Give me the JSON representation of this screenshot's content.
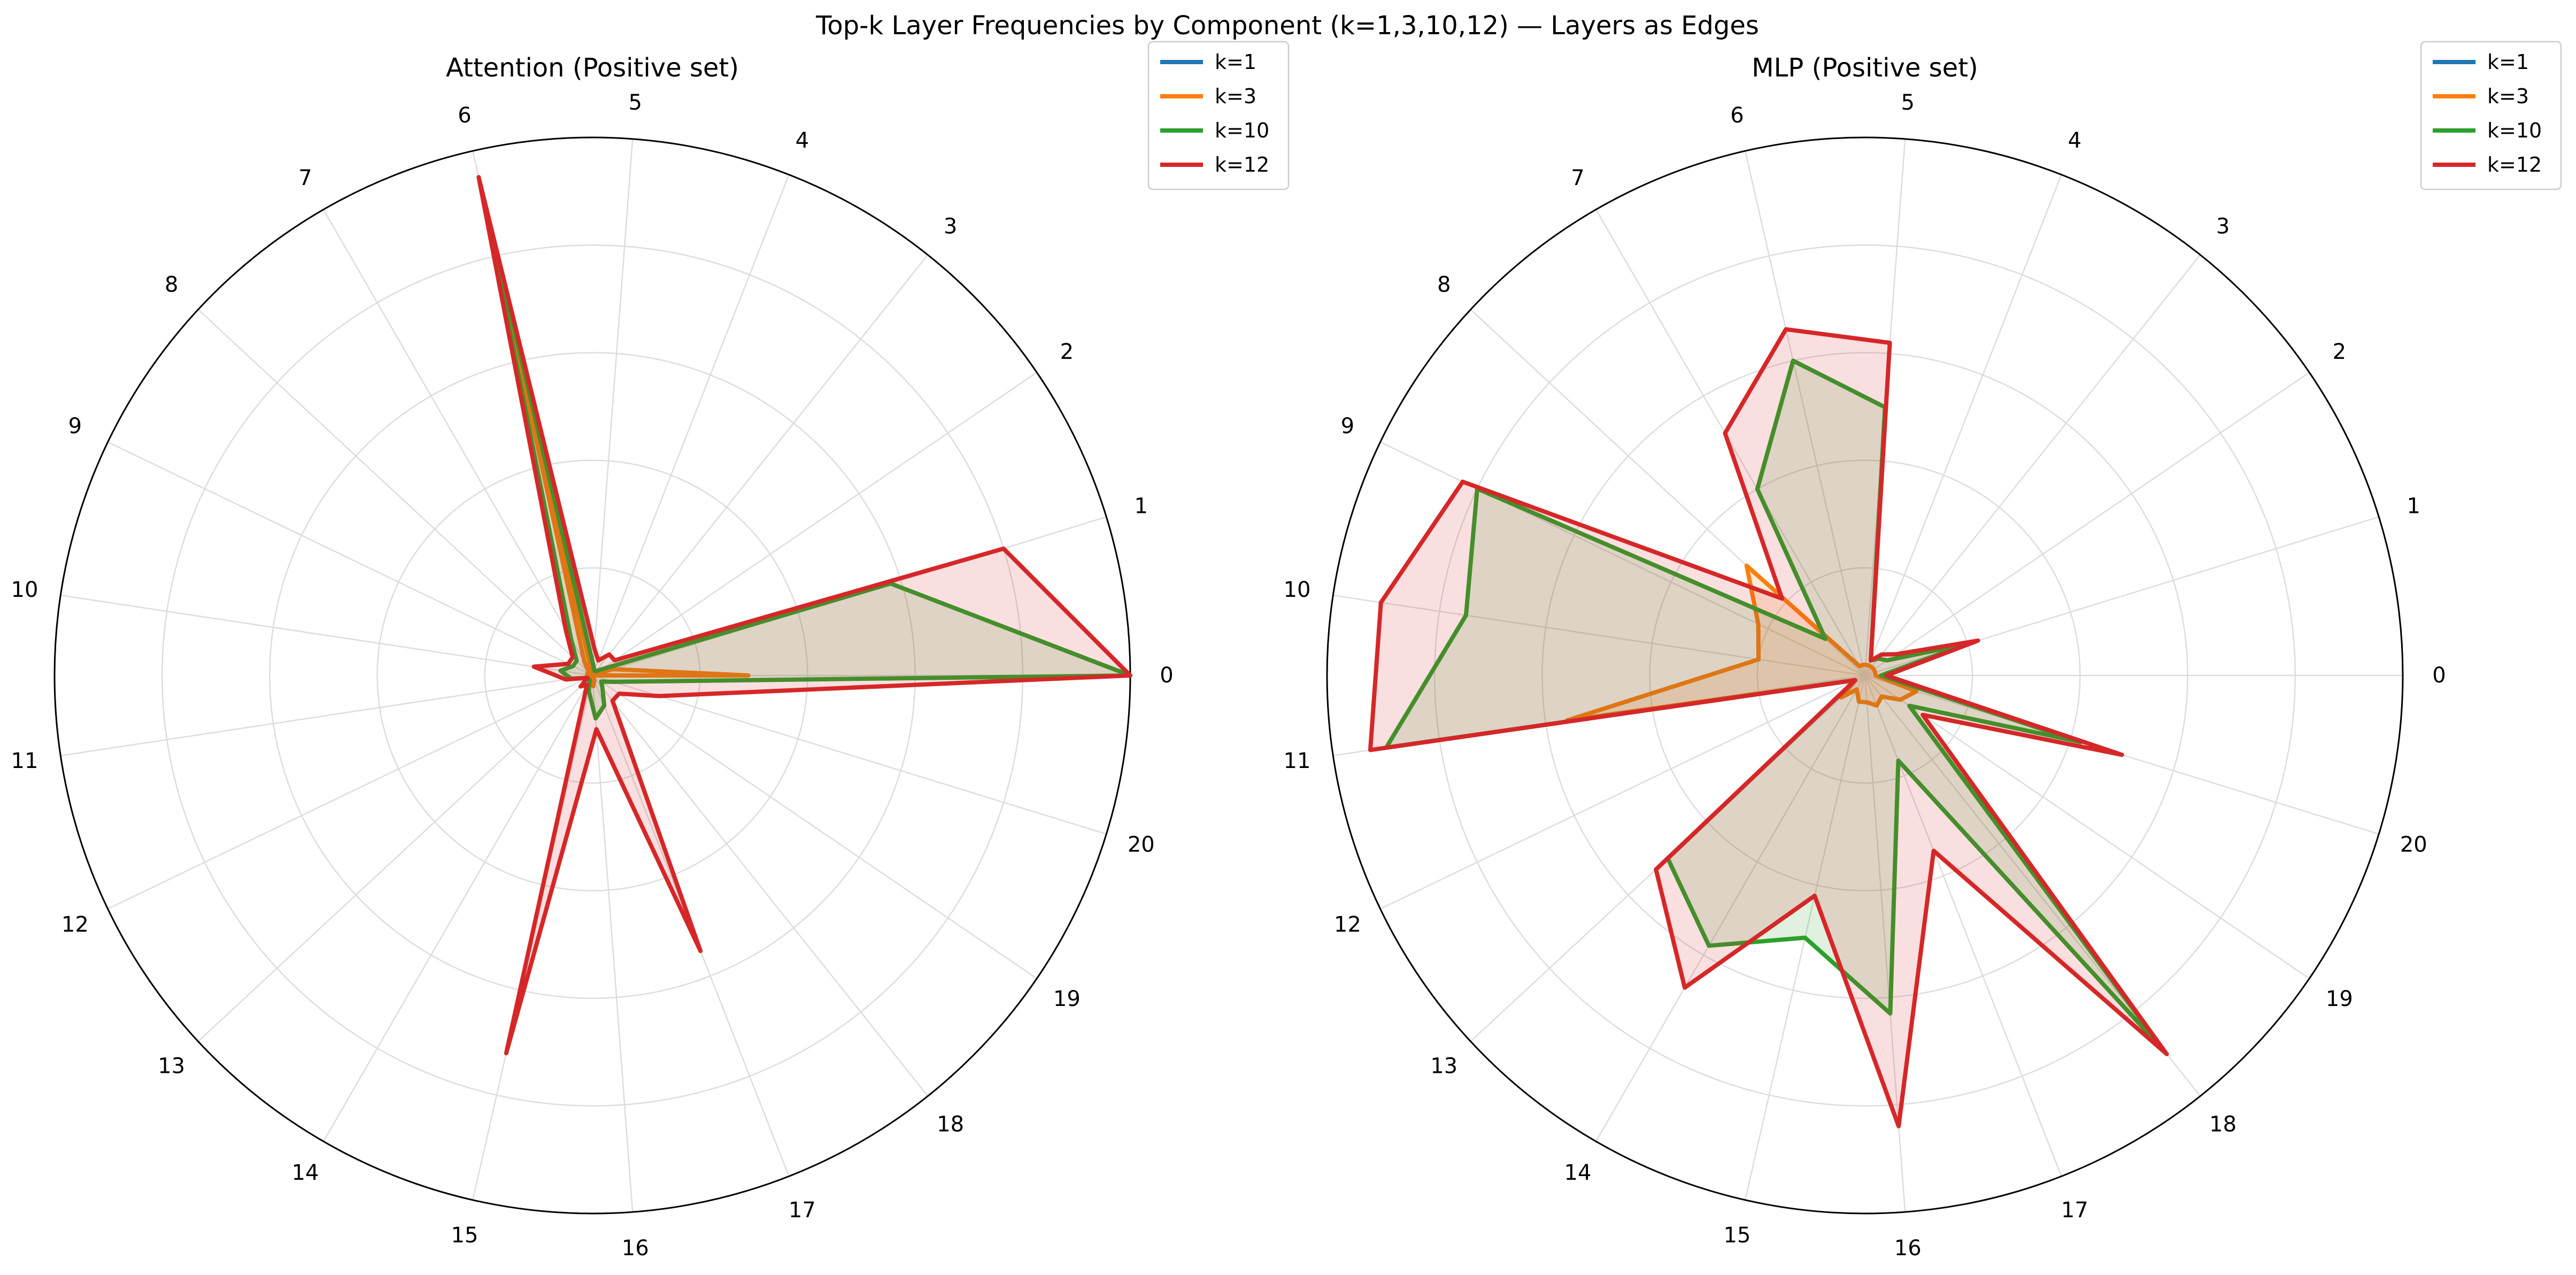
{
  "figure": {
    "title": "Top-k Layer Frequencies by Component (k=1,3,10,12) — Layers as Edges"
  },
  "colors": {
    "k=1": "#1f77b4",
    "k=3": "#ff7f0e",
    "k=10": "#2ca02c",
    "k=12": "#d62728"
  },
  "chart_data": [
    {
      "type": "radar",
      "title": "Attention (Positive set)",
      "categories": [
        "0",
        "1",
        "2",
        "3",
        "4",
        "5",
        "6",
        "7",
        "8",
        "9",
        "10",
        "11",
        "12",
        "13",
        "14",
        "15",
        "16",
        "17",
        "18",
        "19",
        "20"
      ],
      "rlim": [
        0,
        1
      ],
      "grid": true,
      "legend_placement": "top-right",
      "series": [
        {
          "name": "k=1",
          "values": [
            0,
            0,
            0,
            0,
            0,
            0,
            0,
            0,
            0,
            0,
            0,
            0,
            0,
            0,
            0,
            0,
            0,
            0,
            0,
            0,
            0
          ]
        },
        {
          "name": "k=3",
          "values": [
            0.29,
            0.04,
            0,
            0,
            0,
            0,
            0.9,
            0.03,
            0.01,
            0.01,
            0.01,
            0.01,
            0,
            0,
            0,
            0,
            0.02,
            0.01,
            0,
            0,
            0
          ]
        },
        {
          "name": "k=10",
          "values": [
            1.0,
            0.58,
            0.02,
            0.01,
            0.01,
            0.02,
            0.92,
            0.08,
            0.04,
            0.04,
            0.06,
            0.04,
            0.01,
            0.01,
            0.01,
            0.03,
            0.08,
            0.06,
            0.03,
            0.02,
            0.04
          ]
        },
        {
          "name": "k=12",
          "values": [
            1.0,
            0.8,
            0.05,
            0.05,
            0.03,
            0.05,
            0.95,
            0.1,
            0.05,
            0.05,
            0.11,
            0.05,
            0.01,
            0.03,
            0.02,
            0.72,
            0.1,
            0.55,
            0.06,
            0.06,
            0.13
          ]
        }
      ]
    },
    {
      "type": "radar",
      "title": "MLP (Positive set)",
      "categories": [
        "0",
        "1",
        "2",
        "3",
        "4",
        "5",
        "6",
        "7",
        "8",
        "9",
        "10",
        "11",
        "12",
        "13",
        "14",
        "15",
        "16",
        "17",
        "18",
        "19",
        "20"
      ],
      "rlim": [
        0,
        1
      ],
      "grid": true,
      "legend_placement": "top-right",
      "series": [
        {
          "name": "k=1",
          "values": [
            0,
            0,
            0,
            0,
            0,
            0,
            0,
            0,
            0,
            0,
            0,
            0,
            0,
            0,
            0,
            0,
            0,
            0,
            0,
            0,
            0
          ]
        },
        {
          "name": "k=3",
          "values": [
            0.02,
            0.02,
            0.02,
            0.02,
            0.02,
            0.02,
            0.02,
            0.02,
            0.3,
            0.22,
            0.2,
            0.56,
            0.02,
            0.06,
            0.03,
            0.05,
            0.05,
            0.06,
            0.05,
            0.08,
            0.1
          ]
        },
        {
          "name": "k=10",
          "values": [
            0.03,
            0.2,
            0.05,
            0.04,
            0.03,
            0.5,
            0.6,
            0.4,
            0.1,
            0.8,
            0.75,
            0.9,
            0.02,
            0.5,
            0.58,
            0.5,
            0.63,
            0.17,
            0.89,
            0.1,
            0.42
          ]
        },
        {
          "name": "k=12",
          "values": [
            0.04,
            0.22,
            0.07,
            0.05,
            0.03,
            0.62,
            0.66,
            0.52,
            0.21,
            0.83,
            0.91,
            0.93,
            0.02,
            0.53,
            0.67,
            0.42,
            0.84,
            0.35,
            0.9,
            0.13,
            0.5
          ]
        }
      ]
    }
  ]
}
